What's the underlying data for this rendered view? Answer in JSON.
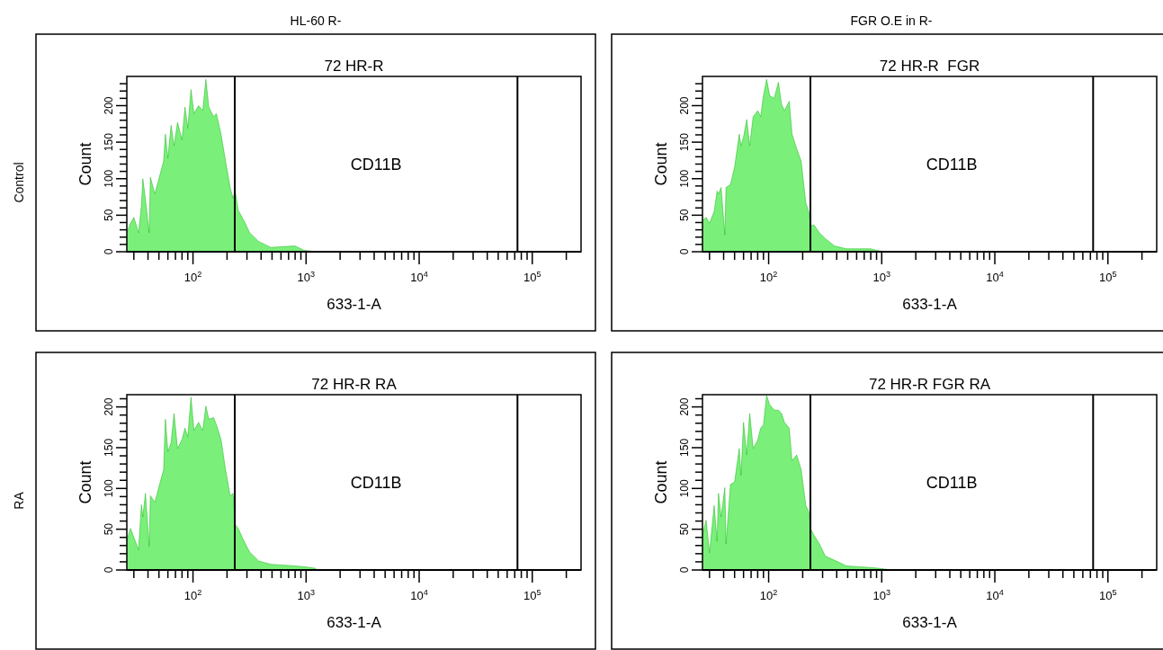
{
  "chart_data": [
    {
      "type": "area",
      "title": "72 HR-R",
      "xlabel": "633-1-A",
      "ylabel": "Count",
      "log": "x",
      "annotations": [
        "HL-60 R-",
        "Control",
        "CD11B"
      ],
      "x": [
        26,
        28,
        30,
        33,
        35,
        36,
        38,
        41,
        42,
        46,
        50,
        55,
        57,
        60,
        64,
        68,
        73,
        80,
        85,
        90,
        96,
        102,
        112,
        122,
        130,
        138,
        152,
        161,
        177,
        194,
        213,
        226,
        236,
        251,
        281,
        317,
        381,
        488,
        797,
        958,
        1225
      ],
      "series": [
        {
          "color": "#22e622",
          "values": [
            26,
            39,
            47,
            26,
            63,
            100,
            71,
            26,
            102,
            79,
            100,
            124,
            161,
            128,
            173,
            145,
            177,
            153,
            198,
            169,
            222,
            189,
            200,
            193,
            236,
            198,
            185,
            189,
            161,
            124,
            88,
            73,
            84,
            57,
            43,
            26,
            14,
            6,
            8,
            2,
            0
          ]
        }
      ],
      "xlim": [
        26,
        270000
      ],
      "ylim": [
        0,
        240
      ],
      "xticks": [
        {
          "value": 30,
          "label": null
        },
        {
          "value": 40,
          "label": null
        },
        {
          "value": 50,
          "label": null
        },
        {
          "value": 60,
          "label": null
        },
        {
          "value": 70,
          "label": null
        },
        {
          "value": 80,
          "label": null
        },
        {
          "value": 90,
          "label": null
        },
        {
          "value": 100,
          "label": "10$^{2}$"
        },
        {
          "value": 200,
          "label": null
        },
        {
          "value": 300,
          "label": null
        },
        {
          "value": 400,
          "label": null
        },
        {
          "value": 500,
          "label": null
        },
        {
          "value": 600,
          "label": null
        },
        {
          "value": 700,
          "label": null
        },
        {
          "value": 800,
          "label": null
        },
        {
          "value": 900,
          "label": null
        },
        {
          "value": 1000,
          "label": "10$^{3}$"
        },
        {
          "value": 2000,
          "label": null
        },
        {
          "value": 3000,
          "label": null
        },
        {
          "value": 4000,
          "label": null
        },
        {
          "value": 5000,
          "label": null
        },
        {
          "value": 6000,
          "label": null
        },
        {
          "value": 7000,
          "label": null
        },
        {
          "value": 8000,
          "label": null
        },
        {
          "value": 9000,
          "label": null
        },
        {
          "value": 10000,
          "label": "10$^{4}$"
        },
        {
          "value": 20000,
          "label": null
        },
        {
          "value": 30000,
          "label": null
        },
        {
          "value": 40000,
          "label": null
        },
        {
          "value": 50000,
          "label": null
        },
        {
          "value": 60000,
          "label": null
        },
        {
          "value": 70000,
          "label": null
        },
        {
          "value": 80000,
          "label": null
        },
        {
          "value": 90000,
          "label": null
        },
        {
          "value": 100000,
          "label": "10$^{5}$"
        },
        {
          "value": 200000,
          "label": null
        }
      ],
      "yticks": [
        0,
        {
          "value": 10,
          "label": null
        },
        {
          "value": 20,
          "label": null
        },
        {
          "value": 30,
          "label": null
        },
        {
          "value": 40,
          "label": null
        },
        50,
        {
          "value": 60,
          "label": null
        },
        {
          "value": 70,
          "label": null
        },
        {
          "value": 80,
          "label": null
        },
        {
          "value": 90,
          "label": null
        },
        100,
        {
          "value": 110,
          "label": null
        },
        {
          "value": 120,
          "label": null
        },
        {
          "value": 130,
          "label": null
        },
        {
          "value": 140,
          "label": null
        },
        150,
        {
          "value": 160,
          "label": null
        },
        {
          "value": 170,
          "label": null
        },
        {
          "value": 180,
          "label": null
        },
        {
          "value": 190,
          "label": null
        },
        200,
        {
          "value": 210,
          "label": null
        },
        {
          "value": 220,
          "label": null
        },
        {
          "value": 230,
          "label": null
        }
      ],
      "ref_lines": [
        {
          "axis": "x",
          "value": 234
        },
        {
          "axis": "x",
          "value": 74000
        }
      ]
    },
    {
      "type": "area",
      "title": "72 HR-R  FGR",
      "xlabel": "633-1-A",
      "ylabel": "Count",
      "log": "x",
      "annotations": [
        "FGR O.E in R-",
        "CD11B"
      ],
      "x": [
        26,
        28,
        30,
        33,
        35,
        36,
        38,
        41,
        42,
        46,
        50,
        55,
        57,
        60,
        64,
        68,
        73,
        80,
        85,
        90,
        96,
        102,
        112,
        122,
        130,
        138,
        152,
        161,
        177,
        194,
        213,
        226,
        236,
        251,
        281,
        317,
        381,
        488,
        797,
        958,
        1225
      ],
      "series": [
        {
          "color": "#22e622",
          "values": [
            43,
            47,
            39,
            55,
            83,
            79,
            88,
            23,
            88,
            92,
            116,
            161,
            145,
            157,
            181,
            145,
            185,
            193,
            185,
            214,
            236,
            214,
            210,
            232,
            202,
            193,
            206,
            161,
            141,
            124,
            67,
            55,
            35,
            37,
            26,
            18,
            8,
            4,
            4,
            1,
            0
          ]
        }
      ],
      "xlim": [
        26,
        270000
      ],
      "ylim": [
        0,
        240
      ],
      "xticks": [
        {
          "value": 30,
          "label": null
        },
        {
          "value": 40,
          "label": null
        },
        {
          "value": 50,
          "label": null
        },
        {
          "value": 60,
          "label": null
        },
        {
          "value": 70,
          "label": null
        },
        {
          "value": 80,
          "label": null
        },
        {
          "value": 90,
          "label": null
        },
        {
          "value": 100,
          "label": "10$^{2}$"
        },
        {
          "value": 200,
          "label": null
        },
        {
          "value": 300,
          "label": null
        },
        {
          "value": 400,
          "label": null
        },
        {
          "value": 500,
          "label": null
        },
        {
          "value": 600,
          "label": null
        },
        {
          "value": 700,
          "label": null
        },
        {
          "value": 800,
          "label": null
        },
        {
          "value": 900,
          "label": null
        },
        {
          "value": 1000,
          "label": "10$^{3}$"
        },
        {
          "value": 2000,
          "label": null
        },
        {
          "value": 3000,
          "label": null
        },
        {
          "value": 4000,
          "label": null
        },
        {
          "value": 5000,
          "label": null
        },
        {
          "value": 6000,
          "label": null
        },
        {
          "value": 7000,
          "label": null
        },
        {
          "value": 8000,
          "label": null
        },
        {
          "value": 9000,
          "label": null
        },
        {
          "value": 10000,
          "label": "10$^{4}$"
        },
        {
          "value": 20000,
          "label": null
        },
        {
          "value": 30000,
          "label": null
        },
        {
          "value": 40000,
          "label": null
        },
        {
          "value": 50000,
          "label": null
        },
        {
          "value": 60000,
          "label": null
        },
        {
          "value": 70000,
          "label": null
        },
        {
          "value": 80000,
          "label": null
        },
        {
          "value": 90000,
          "label": null
        },
        {
          "value": 100000,
          "label": "10$^{5}$"
        },
        {
          "value": 200000,
          "label": null
        }
      ],
      "yticks": [
        0,
        {
          "value": 10,
          "label": null
        },
        {
          "value": 20,
          "label": null
        },
        {
          "value": 30,
          "label": null
        },
        {
          "value": 40,
          "label": null
        },
        50,
        {
          "value": 60,
          "label": null
        },
        {
          "value": 70,
          "label": null
        },
        {
          "value": 80,
          "label": null
        },
        {
          "value": 90,
          "label": null
        },
        100,
        {
          "value": 110,
          "label": null
        },
        {
          "value": 120,
          "label": null
        },
        {
          "value": 130,
          "label": null
        },
        {
          "value": 140,
          "label": null
        },
        150,
        {
          "value": 160,
          "label": null
        },
        {
          "value": 170,
          "label": null
        },
        {
          "value": 180,
          "label": null
        },
        {
          "value": 190,
          "label": null
        },
        200,
        {
          "value": 210,
          "label": null
        },
        {
          "value": 220,
          "label": null
        },
        {
          "value": 230,
          "label": null
        }
      ],
      "ref_lines": [
        {
          "axis": "x",
          "value": 234
        },
        {
          "axis": "x",
          "value": 74000
        }
      ]
    },
    {
      "type": "area",
      "title": "72 HR-R RA",
      "xlabel": "633-1-A",
      "ylabel": "Count",
      "log": "x",
      "annotations": [
        "RA",
        "CD11B"
      ],
      "x": [
        26,
        28,
        30,
        33,
        35,
        36,
        38,
        41,
        42,
        46,
        50,
        55,
        57,
        60,
        64,
        68,
        73,
        80,
        85,
        90,
        96,
        102,
        112,
        122,
        130,
        138,
        152,
        161,
        177,
        194,
        213,
        226,
        236,
        251,
        281,
        317,
        381,
        488,
        797,
        958,
        1225
      ],
      "series": [
        {
          "color": "#22e622",
          "values": [
            36,
            51,
            40,
            25,
            80,
            65,
            94,
            29,
            91,
            83,
            102,
            123,
            185,
            145,
            156,
            192,
            149,
            160,
            174,
            163,
            212,
            171,
            181,
            171,
            201,
            185,
            187,
            178,
            160,
            123,
            91,
            94,
            56,
            51,
            36,
            22,
            11,
            7,
            5,
            4,
            2
          ]
        }
      ],
      "xlim": [
        26,
        270000
      ],
      "ylim": [
        0,
        215
      ],
      "xticks": [
        {
          "value": 30,
          "label": null
        },
        {
          "value": 40,
          "label": null
        },
        {
          "value": 50,
          "label": null
        },
        {
          "value": 60,
          "label": null
        },
        {
          "value": 70,
          "label": null
        },
        {
          "value": 80,
          "label": null
        },
        {
          "value": 90,
          "label": null
        },
        {
          "value": 100,
          "label": "10$^{2}$"
        },
        {
          "value": 200,
          "label": null
        },
        {
          "value": 300,
          "label": null
        },
        {
          "value": 400,
          "label": null
        },
        {
          "value": 500,
          "label": null
        },
        {
          "value": 600,
          "label": null
        },
        {
          "value": 700,
          "label": null
        },
        {
          "value": 800,
          "label": null
        },
        {
          "value": 900,
          "label": null
        },
        {
          "value": 1000,
          "label": "10$^{3}$"
        },
        {
          "value": 2000,
          "label": null
        },
        {
          "value": 3000,
          "label": null
        },
        {
          "value": 4000,
          "label": null
        },
        {
          "value": 5000,
          "label": null
        },
        {
          "value": 6000,
          "label": null
        },
        {
          "value": 7000,
          "label": null
        },
        {
          "value": 8000,
          "label": null
        },
        {
          "value": 9000,
          "label": null
        },
        {
          "value": 10000,
          "label": "10$^{4}$"
        },
        {
          "value": 20000,
          "label": null
        },
        {
          "value": 30000,
          "label": null
        },
        {
          "value": 40000,
          "label": null
        },
        {
          "value": 50000,
          "label": null
        },
        {
          "value": 60000,
          "label": null
        },
        {
          "value": 70000,
          "label": null
        },
        {
          "value": 80000,
          "label": null
        },
        {
          "value": 90000,
          "label": null
        },
        {
          "value": 100000,
          "label": "10$^{5}$"
        },
        {
          "value": 200000,
          "label": null
        }
      ],
      "yticks": [
        0,
        {
          "value": 10,
          "label": null
        },
        {
          "value": 20,
          "label": null
        },
        {
          "value": 30,
          "label": null
        },
        {
          "value": 40,
          "label": null
        },
        50,
        {
          "value": 60,
          "label": null
        },
        {
          "value": 70,
          "label": null
        },
        {
          "value": 80,
          "label": null
        },
        {
          "value": 90,
          "label": null
        },
        100,
        {
          "value": 110,
          "label": null
        },
        {
          "value": 120,
          "label": null
        },
        {
          "value": 130,
          "label": null
        },
        {
          "value": 140,
          "label": null
        },
        150,
        {
          "value": 160,
          "label": null
        },
        {
          "value": 170,
          "label": null
        },
        {
          "value": 180,
          "label": null
        },
        {
          "value": 190,
          "label": null
        },
        200,
        {
          "value": 210,
          "label": null
        }
      ],
      "ref_lines": [
        {
          "axis": "x",
          "value": 234
        },
        {
          "axis": "x",
          "value": 74000
        }
      ]
    },
    {
      "type": "area",
      "title": "72 HR-R FGR RA",
      "xlabel": "633-1-A",
      "ylabel": "Count",
      "log": "x",
      "annotations": [
        "CD11B"
      ],
      "x": [
        26,
        28,
        30,
        33,
        35,
        36,
        38,
        41,
        42,
        46,
        50,
        55,
        57,
        60,
        64,
        68,
        73,
        80,
        85,
        90,
        96,
        102,
        112,
        122,
        130,
        138,
        152,
        161,
        177,
        194,
        213,
        226,
        236,
        251,
        281,
        317,
        381,
        488,
        797,
        958,
        1225
      ],
      "series": [
        {
          "color": "#22e622",
          "values": [
            43,
            61,
            21,
            79,
            35,
            94,
            65,
            101,
            32,
            105,
            108,
            149,
            116,
            181,
            141,
            192,
            149,
            159,
            174,
            178,
            214,
            203,
            196,
            196,
            192,
            181,
            174,
            134,
            141,
            123,
            79,
            72,
            50,
            43,
            32,
            17,
            12,
            5,
            3,
            2,
            0
          ]
        }
      ],
      "xlim": [
        26,
        270000
      ],
      "ylim": [
        0,
        215
      ],
      "xticks": [
        {
          "value": 30,
          "label": null
        },
        {
          "value": 40,
          "label": null
        },
        {
          "value": 50,
          "label": null
        },
        {
          "value": 60,
          "label": null
        },
        {
          "value": 70,
          "label": null
        },
        {
          "value": 80,
          "label": null
        },
        {
          "value": 90,
          "label": null
        },
        {
          "value": 100,
          "label": "10$^{2}$"
        },
        {
          "value": 200,
          "label": null
        },
        {
          "value": 300,
          "label": null
        },
        {
          "value": 400,
          "label": null
        },
        {
          "value": 500,
          "label": null
        },
        {
          "value": 600,
          "label": null
        },
        {
          "value": 700,
          "label": null
        },
        {
          "value": 800,
          "label": null
        },
        {
          "value": 900,
          "label": null
        },
        {
          "value": 1000,
          "label": "10$^{3}$"
        },
        {
          "value": 2000,
          "label": null
        },
        {
          "value": 3000,
          "label": null
        },
        {
          "value": 4000,
          "label": null
        },
        {
          "value": 5000,
          "label": null
        },
        {
          "value": 6000,
          "label": null
        },
        {
          "value": 7000,
          "label": null
        },
        {
          "value": 8000,
          "label": null
        },
        {
          "value": 9000,
          "label": null
        },
        {
          "value": 10000,
          "label": "10$^{4}$"
        },
        {
          "value": 20000,
          "label": null
        },
        {
          "value": 30000,
          "label": null
        },
        {
          "value": 40000,
          "label": null
        },
        {
          "value": 50000,
          "label": null
        },
        {
          "value": 60000,
          "label": null
        },
        {
          "value": 70000,
          "label": null
        },
        {
          "value": 80000,
          "label": null
        },
        {
          "value": 90000,
          "label": null
        },
        {
          "value": 100000,
          "label": "10$^{5}$"
        },
        {
          "value": 200000,
          "label": null
        }
      ],
      "yticks": [
        0,
        {
          "value": 10,
          "label": null
        },
        {
          "value": 20,
          "label": null
        },
        {
          "value": 30,
          "label": null
        },
        {
          "value": 40,
          "label": null
        },
        50,
        {
          "value": 60,
          "label": null
        },
        {
          "value": 70,
          "label": null
        },
        {
          "value": 80,
          "label": null
        },
        {
          "value": 90,
          "label": null
        },
        100,
        {
          "value": 110,
          "label": null
        },
        {
          "value": 120,
          "label": null
        },
        {
          "value": 130,
          "label": null
        },
        {
          "value": 140,
          "label": null
        },
        150,
        {
          "value": 160,
          "label": null
        },
        {
          "value": 170,
          "label": null
        },
        {
          "value": 180,
          "label": null
        },
        {
          "value": 190,
          "label": null
        },
        200,
        {
          "value": 210,
          "label": null
        }
      ],
      "ref_lines": [
        {
          "axis": "x",
          "value": 234
        },
        {
          "axis": "x",
          "value": 74000
        }
      ]
    }
  ]
}
